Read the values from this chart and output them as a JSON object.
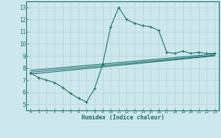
{
  "title": "",
  "xlabel": "Humidex (Indice chaleur)",
  "bg_color": "#cce8ec",
  "grid_color": "#b8d4d8",
  "line_color": "#1a6b6b",
  "xlim": [
    -0.5,
    23.5
  ],
  "ylim": [
    4.5,
    13.5
  ],
  "xticks": [
    0,
    1,
    2,
    3,
    4,
    5,
    6,
    7,
    8,
    9,
    10,
    11,
    12,
    13,
    14,
    15,
    16,
    17,
    18,
    19,
    20,
    21,
    22,
    23
  ],
  "yticks": [
    5,
    6,
    7,
    8,
    9,
    10,
    11,
    12,
    13
  ],
  "series1_x": [
    0,
    1,
    2,
    3,
    4,
    5,
    6,
    7,
    8,
    9,
    10,
    11,
    12,
    13,
    14,
    15,
    16,
    17,
    18,
    19,
    20,
    21,
    22,
    23
  ],
  "series1_y": [
    7.6,
    7.2,
    7.0,
    6.8,
    6.4,
    5.9,
    5.5,
    5.2,
    6.3,
    8.3,
    11.4,
    13.0,
    12.0,
    11.7,
    11.5,
    11.4,
    11.1,
    9.3,
    9.2,
    9.4,
    9.2,
    9.3,
    9.2,
    9.2
  ],
  "series2_x": [
    0,
    23
  ],
  "series2_y": [
    7.5,
    9.0
  ],
  "series3_x": [
    0,
    23
  ],
  "series3_y": [
    7.65,
    9.05
  ],
  "series4_x": [
    0,
    23
  ],
  "series4_y": [
    7.8,
    9.15
  ]
}
